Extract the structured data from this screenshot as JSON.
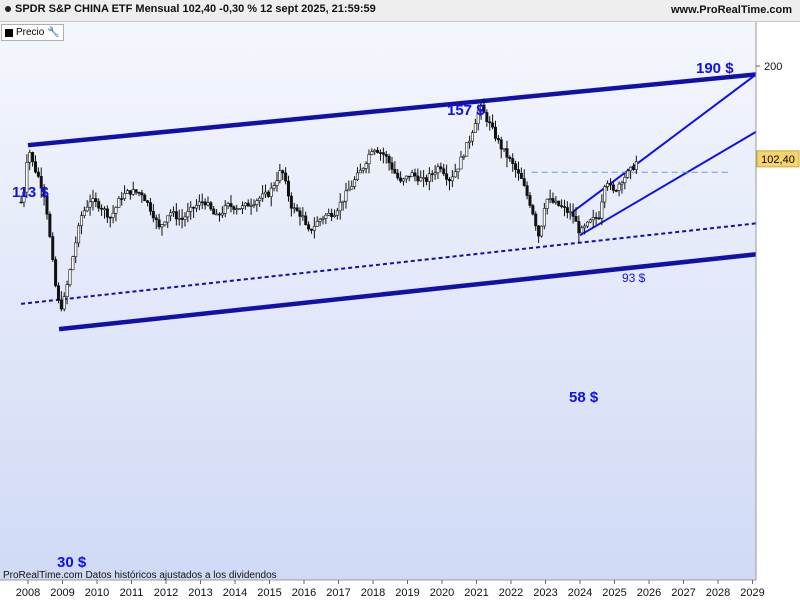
{
  "header": {
    "title": "SPDR S&P CHINA ETF Mensual 102,40 -0,30 % 12 sept 2025, 21:59:59",
    "site": "www.ProRealTime.com"
  },
  "legend": {
    "label": "Precio",
    "color": "#000000",
    "icon": "wrench-icon"
  },
  "footer": {
    "left": "ProRealTime.com",
    "right": "Datos históricos ajustados a los dividendos"
  },
  "colors": {
    "background_top": "#f5f7fd",
    "background_bottom": "#d0daf6",
    "channel": "#1111aa",
    "annotation": "#1010ee",
    "price_tag": "#f7d46a"
  },
  "chart_data": {
    "type": "candlestick",
    "title": "SPDR S&P CHINA ETF Mensual",
    "x_ticks": [
      "2008",
      "2009",
      "2010",
      "2011",
      "2012",
      "2013",
      "2014",
      "2015",
      "2016",
      "2017",
      "2018",
      "2019",
      "2020",
      "2021",
      "2022",
      "2023",
      "2024",
      "2025",
      "2026",
      "2027",
      "2028",
      "2029"
    ],
    "y_scale": "log",
    "y_ticks": [
      200
    ],
    "last_price": 102.4,
    "last_price_label": "102,40",
    "last_price_change": "-0,30 %",
    "annotations": [
      "113 $",
      "157 $",
      "190 $",
      "58 $",
      "30 $",
      "93 $"
    ],
    "price_path": [
      {
        "date": "2007.80",
        "price": 75
      },
      {
        "date": "2007.90",
        "price": 83
      },
      {
        "date": "2008.00",
        "price": 113
      },
      {
        "date": "2008.15",
        "price": 98
      },
      {
        "date": "2008.30",
        "price": 90
      },
      {
        "date": "2008.50",
        "price": 78
      },
      {
        "date": "2008.70",
        "price": 50
      },
      {
        "date": "2008.85",
        "price": 37
      },
      {
        "date": "2009.00",
        "price": 35
      },
      {
        "date": "2009.15",
        "price": 42
      },
      {
        "date": "2009.35",
        "price": 54
      },
      {
        "date": "2009.55",
        "price": 68
      },
      {
        "date": "2009.80",
        "price": 76
      },
      {
        "date": "2010.10",
        "price": 73
      },
      {
        "date": "2010.40",
        "price": 67
      },
      {
        "date": "2010.70",
        "price": 78
      },
      {
        "date": "2010.95",
        "price": 81
      },
      {
        "date": "2011.30",
        "price": 80
      },
      {
        "date": "2011.60",
        "price": 70
      },
      {
        "date": "2011.80",
        "price": 62
      },
      {
        "date": "2012.10",
        "price": 70
      },
      {
        "date": "2012.45",
        "price": 66
      },
      {
        "date": "2012.80",
        "price": 72
      },
      {
        "date": "2013.10",
        "price": 76
      },
      {
        "date": "2013.45",
        "price": 67
      },
      {
        "date": "2013.80",
        "price": 73
      },
      {
        "date": "2014.20",
        "price": 72
      },
      {
        "date": "2014.70",
        "price": 77
      },
      {
        "date": "2015.00",
        "price": 80
      },
      {
        "date": "2015.35",
        "price": 95
      },
      {
        "date": "2015.65",
        "price": 72
      },
      {
        "date": "2015.95",
        "price": 68
      },
      {
        "date": "2016.10",
        "price": 60
      },
      {
        "date": "2016.50",
        "price": 67
      },
      {
        "date": "2016.90",
        "price": 70
      },
      {
        "date": "2017.30",
        "price": 82
      },
      {
        "date": "2017.70",
        "price": 96
      },
      {
        "date": "2018.00",
        "price": 112
      },
      {
        "date": "2018.35",
        "price": 105
      },
      {
        "date": "2018.80",
        "price": 86
      },
      {
        "date": "2019.10",
        "price": 92
      },
      {
        "date": "2019.50",
        "price": 87
      },
      {
        "date": "2019.95",
        "price": 98
      },
      {
        "date": "2020.20",
        "price": 88
      },
      {
        "date": "2020.45",
        "price": 96
      },
      {
        "date": "2020.80",
        "price": 118
      },
      {
        "date": "2021.10",
        "price": 150
      },
      {
        "date": "2021.40",
        "price": 130
      },
      {
        "date": "2021.70",
        "price": 112
      },
      {
        "date": "2022.00",
        "price": 100
      },
      {
        "date": "2022.30",
        "price": 88
      },
      {
        "date": "2022.60",
        "price": 72
      },
      {
        "date": "2022.82",
        "price": 58
      },
      {
        "date": "2023.00",
        "price": 77
      },
      {
        "date": "2023.40",
        "price": 73
      },
      {
        "date": "2023.80",
        "price": 68
      },
      {
        "date": "2024.00",
        "price": 60
      },
      {
        "date": "2024.30",
        "price": 65
      },
      {
        "date": "2024.55",
        "price": 68
      },
      {
        "date": "2024.75",
        "price": 90
      },
      {
        "date": "2024.95",
        "price": 80
      },
      {
        "date": "2025.20",
        "price": 88
      },
      {
        "date": "2025.50",
        "price": 95
      },
      {
        "date": "2025.70",
        "price": 102.4
      }
    ],
    "trend_lines": [
      {
        "name": "upper-channel",
        "style": "thick",
        "points": [
          {
            "date": "2008.00",
            "price": 113
          },
          {
            "date": "2029.50",
            "price": 190
          }
        ]
      },
      {
        "name": "lower-channel",
        "style": "thick",
        "points": [
          {
            "date": "2008.90",
            "price": 30
          },
          {
            "date": "2029.50",
            "price": 52
          }
        ]
      },
      {
        "name": "mid-channel",
        "style": "dashed",
        "points": [
          {
            "date": "2007.80",
            "price": 36
          },
          {
            "date": "2029.50",
            "price": 65
          }
        ]
      },
      {
        "name": "short-term-upper",
        "style": "thin",
        "points": [
          {
            "date": "2023.80",
            "price": 70
          },
          {
            "date": "2029.10",
            "price": 188
          }
        ]
      },
      {
        "name": "short-term-lower",
        "style": "thin",
        "points": [
          {
            "date": "2024.00",
            "price": 59
          },
          {
            "date": "2029.40",
            "price": 130
          }
        ]
      },
      {
        "name": "resistance-93",
        "style": "dashed-light",
        "points": [
          {
            "date": "2022.60",
            "price": 93
          },
          {
            "date": "2028.40",
            "price": 93
          }
        ]
      }
    ]
  }
}
